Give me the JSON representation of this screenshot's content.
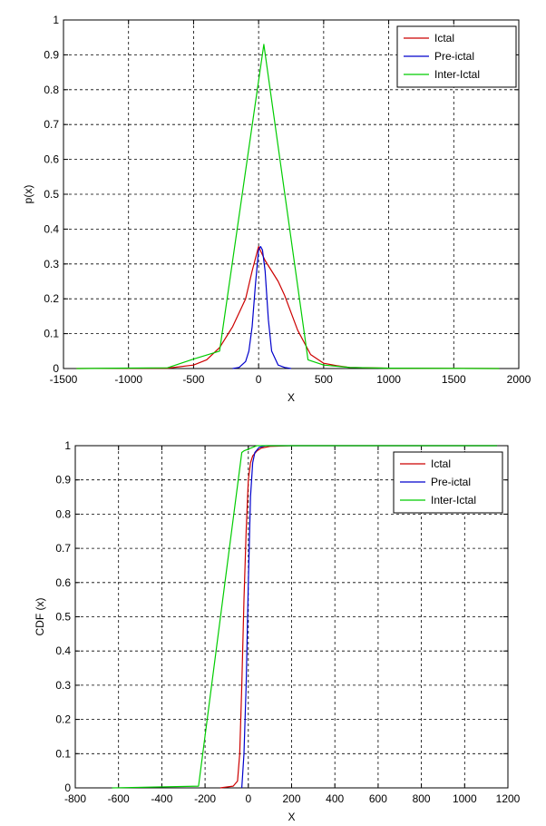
{
  "chart_data": [
    {
      "type": "line",
      "xlabel": "X",
      "ylabel": "p(x)",
      "xlim": [
        -1500,
        2000
      ],
      "ylim": [
        0,
        1
      ],
      "xticks": [
        -1500,
        -1000,
        -500,
        0,
        500,
        1000,
        1500,
        2000
      ],
      "xtick_labels": [
        "-1500",
        "-1000",
        "-500",
        "0",
        "500",
        "1000",
        "1500",
        "2000"
      ],
      "yticks": [
        0,
        0.1,
        0.2,
        0.3,
        0.4,
        0.5,
        0.6,
        0.7,
        0.8,
        0.9,
        1
      ],
      "ytick_labels": [
        "0",
        "0.1",
        "0.2",
        "0.3",
        "0.4",
        "0.5",
        "0.6",
        "0.7",
        "0.8",
        "0.9",
        "1"
      ],
      "grid": true,
      "legend_position": "top-right",
      "series": [
        {
          "name": "Ictal",
          "color": "#cc0000",
          "x": [
            -1400,
            -700,
            -500,
            -400,
            -300,
            -200,
            -100,
            -50,
            0,
            50,
            100,
            150,
            200,
            300,
            400,
            500,
            600,
            700,
            1000,
            1850
          ],
          "y": [
            0,
            0.001,
            0.01,
            0.025,
            0.06,
            0.12,
            0.2,
            0.28,
            0.35,
            0.31,
            0.28,
            0.25,
            0.21,
            0.11,
            0.04,
            0.015,
            0.008,
            0.003,
            0.001,
            0
          ]
        },
        {
          "name": "Pre-ictal",
          "color": "#0000cc",
          "x": [
            -200,
            -150,
            -100,
            -75,
            -50,
            -25,
            0,
            15,
            30,
            50,
            75,
            100,
            150,
            200,
            250
          ],
          "y": [
            0,
            0.003,
            0.02,
            0.05,
            0.12,
            0.24,
            0.34,
            0.35,
            0.34,
            0.28,
            0.14,
            0.05,
            0.01,
            0.003,
            0
          ]
        },
        {
          "name": "Inter-Ictal",
          "color": "#00cc00",
          "x": [
            -1400,
            -700,
            -500,
            -300,
            40,
            380,
            500,
            700,
            1000,
            1850
          ],
          "y": [
            0,
            0.002,
            0.027,
            0.05,
            0.93,
            0.025,
            0.01,
            0.003,
            0.001,
            0
          ]
        }
      ]
    },
    {
      "type": "line",
      "xlabel": "X",
      "ylabel": "CDF (x)",
      "xlim": [
        -800,
        1200
      ],
      "ylim": [
        0,
        1
      ],
      "xticks": [
        -800,
        -600,
        -400,
        -200,
        0,
        200,
        400,
        600,
        800,
        1000,
        1200
      ],
      "xtick_labels": [
        "-800",
        "-600",
        "-400",
        "-200",
        "0",
        "200",
        "400",
        "600",
        "800",
        "1000",
        "1200"
      ],
      "yticks": [
        0,
        0.1,
        0.2,
        0.3,
        0.4,
        0.5,
        0.6,
        0.7,
        0.8,
        0.9,
        1
      ],
      "ytick_labels": [
        "0",
        "0.1",
        "0.2",
        "0.3",
        "0.4",
        "0.5",
        "0.6",
        "0.7",
        "0.8",
        "0.9",
        "1"
      ],
      "grid": true,
      "legend_position": "top-right",
      "series": [
        {
          "name": "Ictal",
          "color": "#cc0000",
          "x": [
            -130,
            -70,
            -50,
            -40,
            -30,
            -20,
            -10,
            0,
            10,
            20,
            40,
            60,
            100,
            200,
            1150
          ],
          "y": [
            0,
            0.005,
            0.02,
            0.1,
            0.3,
            0.55,
            0.75,
            0.9,
            0.95,
            0.97,
            0.985,
            0.993,
            0.998,
            1,
            1
          ]
        },
        {
          "name": "Pre-ictal",
          "color": "#0000cc",
          "x": [
            -30,
            -20,
            -10,
            0,
            10,
            20,
            30,
            50,
            80,
            150,
            1150
          ],
          "y": [
            0,
            0.1,
            0.3,
            0.6,
            0.85,
            0.95,
            0.98,
            0.995,
            1,
            1,
            1
          ]
        },
        {
          "name": "Inter-Ictal",
          "color": "#00cc00",
          "x": [
            -630,
            -230,
            -30,
            -20,
            40,
            1150
          ],
          "y": [
            0,
            0.005,
            0.98,
            0.985,
            1,
            1
          ]
        }
      ]
    }
  ]
}
